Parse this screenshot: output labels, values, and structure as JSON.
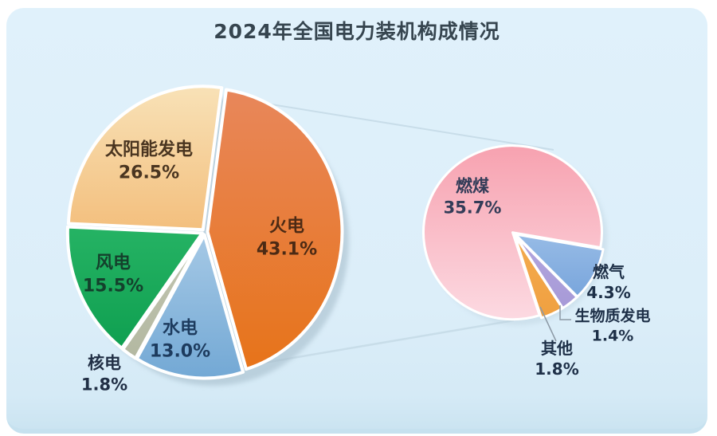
{
  "chart_data": [
    {
      "type": "pie",
      "title": "2024年全国电力装机构成情况",
      "name": "全国电力装机构成",
      "start_angle": -82,
      "legend_position": "none",
      "segments": [
        {
          "label": "火电",
          "value": 43.1,
          "display": "43.1%",
          "color_top": "#e8875b",
          "color_bottom": "#e77318"
        },
        {
          "label": "水电",
          "value": 13.0,
          "display": "13.0%",
          "color_top": "#d9eaf7",
          "color_bottom": "#74a9d5"
        },
        {
          "label": "核电",
          "value": 1.8,
          "display": "1.8%",
          "color_top": "#d4d7c5",
          "color_bottom": "#b1b69f"
        },
        {
          "label": "风电",
          "value": 15.5,
          "display": "15.5%",
          "color_top": "#3fc97a",
          "color_bottom": "#0a9b4c"
        },
        {
          "label": "太阳能发电",
          "value": 26.5,
          "display": "26.5%",
          "color_top": "#f8e1b6",
          "color_bottom": "#ee9c43"
        }
      ]
    },
    {
      "type": "pie",
      "title": "",
      "name": "火电装机构成",
      "start_angle": 10,
      "legend_position": "none",
      "segments": [
        {
          "label": "燃气",
          "value": 4.3,
          "display": "4.3%",
          "color_top": "#c2daf4",
          "color_bottom": "#6d9dd8"
        },
        {
          "label": "生物质发电",
          "value": 1.4,
          "display": "1.4%",
          "color_top": "#c0b4e6",
          "color_bottom": "#a598d6"
        },
        {
          "label": "其他",
          "value": 1.8,
          "display": "1.8%",
          "color_top": "#f6b55e",
          "color_bottom": "#f0a040"
        },
        {
          "label": "燃煤",
          "value": 35.7,
          "display": "35.7%",
          "color_top": "#f7a2b0",
          "color_bottom": "#fcdae2"
        }
      ]
    }
  ],
  "colors": {
    "card_background": "#dceef9",
    "title_text": "#36454f",
    "pie_shadow": "#a3bac8",
    "connector_line": "#c8dde9",
    "leader_line": "#8d9aa6"
  }
}
